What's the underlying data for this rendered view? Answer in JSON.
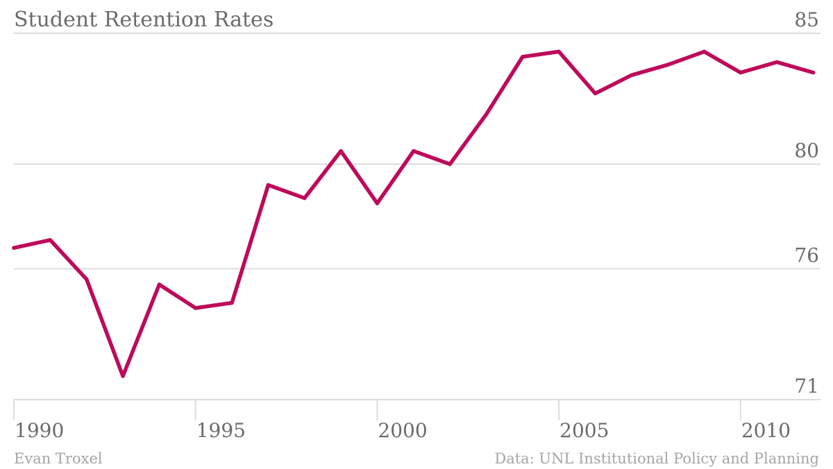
{
  "colors": {
    "line": "#be0a5a"
  },
  "chart_data": {
    "type": "line",
    "title": "Student Retention Rates",
    "xlabel": "",
    "ylabel": "",
    "x": [
      1990,
      1991,
      1992,
      1993,
      1994,
      1995,
      1996,
      1997,
      1998,
      1999,
      2000,
      2001,
      2002,
      2003,
      2004,
      2005,
      2006,
      2007,
      2008,
      2009,
      2010,
      2011,
      2012
    ],
    "series": [
      {
        "values": [
          76.8,
          77.1,
          75.6,
          71.9,
          75.4,
          74.5,
          74.7,
          79.2,
          78.7,
          80.5,
          78.5,
          80.5,
          80.0,
          81.9,
          84.1,
          84.3,
          82.7,
          83.4,
          83.8,
          84.3,
          83.5,
          83.9,
          83.5
        ]
      }
    ],
    "xlim": [
      1990,
      2012.2
    ],
    "ylim": [
      71,
      85
    ],
    "y_ticks": [
      {
        "value": 71,
        "label": "71"
      },
      {
        "value": 76,
        "label": "76"
      },
      {
        "value": 80,
        "label": "80"
      },
      {
        "value": 85,
        "label": "85"
      }
    ],
    "x_ticks": [
      {
        "value": 1990,
        "label": "1990"
      },
      {
        "value": 1995,
        "label": "1995"
      },
      {
        "value": 2000,
        "label": "2000"
      },
      {
        "value": 2005,
        "label": "2005"
      },
      {
        "value": 2010,
        "label": "2010"
      }
    ],
    "grid": true,
    "y_axis_position": "right",
    "credit": "Evan Troxel",
    "source": "Data: UNL Institutional Policy and Planning"
  }
}
